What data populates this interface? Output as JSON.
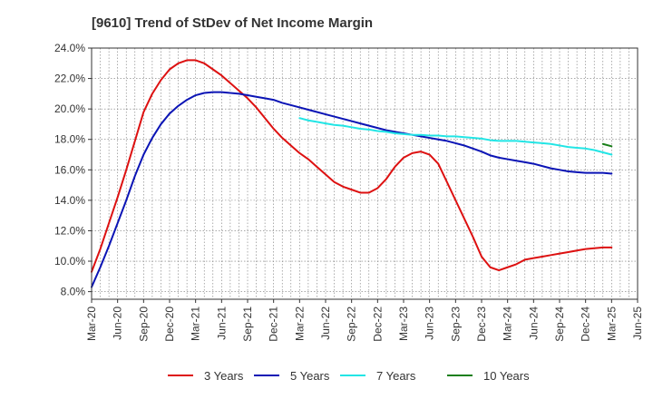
{
  "chart_data": {
    "type": "line",
    "title": "[9610]  Trend of StDev of Net Income Margin",
    "xlabel": "",
    "ylabel": "",
    "ylim": [
      7.5,
      24.0
    ],
    "yticks": [
      8.0,
      10.0,
      12.0,
      14.0,
      16.0,
      18.0,
      20.0,
      22.0,
      24.0
    ],
    "ytick_labels": [
      "8.0%",
      "10.0%",
      "12.0%",
      "14.0%",
      "16.0%",
      "18.0%",
      "20.0%",
      "22.0%",
      "24.0%"
    ],
    "xticks": [
      "Mar-20",
      "Jun-20",
      "Sep-20",
      "Dec-20",
      "Mar-21",
      "Jun-21",
      "Sep-21",
      "Dec-21",
      "Mar-22",
      "Jun-22",
      "Sep-22",
      "Dec-22",
      "Mar-23",
      "Jun-23",
      "Sep-23",
      "Dec-23",
      "Mar-24",
      "Jun-24",
      "Sep-24",
      "Dec-24",
      "Mar-25",
      "Jun-25"
    ],
    "grid": true,
    "legend_position": "bottom",
    "series": [
      {
        "name": "3 Years",
        "color": "#dd1111",
        "points": [
          [
            "Mar-20",
            9.3
          ],
          [
            "Apr-20",
            10.8
          ],
          [
            "May-20",
            12.5
          ],
          [
            "Jun-20",
            14.2
          ],
          [
            "Jul-20",
            16.0
          ],
          [
            "Aug-20",
            17.9
          ],
          [
            "Sep-20",
            19.8
          ],
          [
            "Oct-20",
            21.0
          ],
          [
            "Nov-20",
            21.9
          ],
          [
            "Dec-20",
            22.6
          ],
          [
            "Jan-21",
            23.0
          ],
          [
            "Feb-21",
            23.2
          ],
          [
            "Mar-21",
            23.2
          ],
          [
            "Apr-21",
            23.0
          ],
          [
            "May-21",
            22.6
          ],
          [
            "Jun-21",
            22.2
          ],
          [
            "Jul-21",
            21.7
          ],
          [
            "Aug-21",
            21.2
          ],
          [
            "Sep-21",
            20.7
          ],
          [
            "Oct-21",
            20.1
          ],
          [
            "Nov-21",
            19.4
          ],
          [
            "Dec-21",
            18.7
          ],
          [
            "Jan-22",
            18.1
          ],
          [
            "Feb-22",
            17.6
          ],
          [
            "Mar-22",
            17.1
          ],
          [
            "Apr-22",
            16.7
          ],
          [
            "May-22",
            16.2
          ],
          [
            "Jun-22",
            15.7
          ],
          [
            "Jul-22",
            15.2
          ],
          [
            "Aug-22",
            14.9
          ],
          [
            "Sep-22",
            14.7
          ],
          [
            "Oct-22",
            14.5
          ],
          [
            "Nov-22",
            14.5
          ],
          [
            "Dec-22",
            14.8
          ],
          [
            "Jan-23",
            15.4
          ],
          [
            "Feb-23",
            16.2
          ],
          [
            "Mar-23",
            16.8
          ],
          [
            "Apr-23",
            17.1
          ],
          [
            "May-23",
            17.2
          ],
          [
            "Jun-23",
            17.0
          ],
          [
            "Jul-23",
            16.4
          ],
          [
            "Aug-23",
            15.2
          ],
          [
            "Sep-23",
            14.0
          ],
          [
            "Oct-23",
            12.8
          ],
          [
            "Nov-23",
            11.6
          ],
          [
            "Dec-23",
            10.3
          ],
          [
            "Jan-24",
            9.6
          ],
          [
            "Feb-24",
            9.4
          ],
          [
            "Mar-24",
            9.6
          ],
          [
            "Apr-24",
            9.8
          ],
          [
            "May-24",
            10.1
          ],
          [
            "Jun-24",
            10.2
          ],
          [
            "Jul-24",
            10.3
          ],
          [
            "Aug-24",
            10.4
          ],
          [
            "Sep-24",
            10.5
          ],
          [
            "Oct-24",
            10.6
          ],
          [
            "Nov-24",
            10.7
          ],
          [
            "Dec-24",
            10.8
          ],
          [
            "Jan-25",
            10.85
          ],
          [
            "Feb-25",
            10.9
          ],
          [
            "Mar-25",
            10.9
          ]
        ]
      },
      {
        "name": "5 Years",
        "color": "#0b14b5",
        "points": [
          [
            "Mar-20",
            8.3
          ],
          [
            "Apr-20",
            9.6
          ],
          [
            "May-20",
            11.0
          ],
          [
            "Jun-20",
            12.5
          ],
          [
            "Jul-20",
            14.0
          ],
          [
            "Aug-20",
            15.6
          ],
          [
            "Sep-20",
            17.0
          ],
          [
            "Oct-20",
            18.1
          ],
          [
            "Nov-20",
            19.0
          ],
          [
            "Dec-20",
            19.7
          ],
          [
            "Jan-21",
            20.2
          ],
          [
            "Feb-21",
            20.6
          ],
          [
            "Mar-21",
            20.9
          ],
          [
            "Apr-21",
            21.05
          ],
          [
            "May-21",
            21.1
          ],
          [
            "Jun-21",
            21.1
          ],
          [
            "Jul-21",
            21.05
          ],
          [
            "Aug-21",
            21.0
          ],
          [
            "Sep-21",
            20.9
          ],
          [
            "Oct-21",
            20.8
          ],
          [
            "Nov-21",
            20.7
          ],
          [
            "Dec-21",
            20.6
          ],
          [
            "Jan-22",
            20.4
          ],
          [
            "Feb-22",
            20.25
          ],
          [
            "Mar-22",
            20.1
          ],
          [
            "Apr-22",
            19.95
          ],
          [
            "May-22",
            19.8
          ],
          [
            "Jun-22",
            19.65
          ],
          [
            "Jul-22",
            19.5
          ],
          [
            "Aug-22",
            19.35
          ],
          [
            "Sep-22",
            19.2
          ],
          [
            "Oct-22",
            19.05
          ],
          [
            "Nov-22",
            18.9
          ],
          [
            "Dec-22",
            18.75
          ],
          [
            "Jan-23",
            18.6
          ],
          [
            "Feb-23",
            18.5
          ],
          [
            "Mar-23",
            18.4
          ],
          [
            "Apr-23",
            18.3
          ],
          [
            "May-23",
            18.2
          ],
          [
            "Jun-23",
            18.1
          ],
          [
            "Jul-23",
            18.0
          ],
          [
            "Aug-23",
            17.9
          ],
          [
            "Sep-23",
            17.75
          ],
          [
            "Oct-23",
            17.6
          ],
          [
            "Nov-23",
            17.4
          ],
          [
            "Dec-23",
            17.2
          ],
          [
            "Jan-24",
            16.95
          ],
          [
            "Feb-24",
            16.8
          ],
          [
            "Mar-24",
            16.7
          ],
          [
            "Apr-24",
            16.6
          ],
          [
            "May-24",
            16.5
          ],
          [
            "Jun-24",
            16.4
          ],
          [
            "Jul-24",
            16.25
          ],
          [
            "Aug-24",
            16.1
          ],
          [
            "Sep-24",
            16.0
          ],
          [
            "Oct-24",
            15.9
          ],
          [
            "Nov-24",
            15.85
          ],
          [
            "Dec-24",
            15.8
          ],
          [
            "Jan-25",
            15.8
          ],
          [
            "Feb-25",
            15.8
          ],
          [
            "Mar-25",
            15.75
          ]
        ]
      },
      {
        "name": "7 Years",
        "color": "#22e5e5",
        "points": [
          [
            "Mar-22",
            19.4
          ],
          [
            "Apr-22",
            19.25
          ],
          [
            "May-22",
            19.15
          ],
          [
            "Jun-22",
            19.05
          ],
          [
            "Jul-22",
            18.95
          ],
          [
            "Aug-22",
            18.9
          ],
          [
            "Sep-22",
            18.8
          ],
          [
            "Oct-22",
            18.7
          ],
          [
            "Nov-22",
            18.65
          ],
          [
            "Dec-22",
            18.55
          ],
          [
            "Jan-23",
            18.5
          ],
          [
            "Feb-23",
            18.4
          ],
          [
            "Mar-23",
            18.35
          ],
          [
            "Apr-23",
            18.3
          ],
          [
            "May-23",
            18.3
          ],
          [
            "Jun-23",
            18.25
          ],
          [
            "Jul-23",
            18.25
          ],
          [
            "Aug-23",
            18.2
          ],
          [
            "Sep-23",
            18.2
          ],
          [
            "Oct-23",
            18.15
          ],
          [
            "Nov-23",
            18.1
          ],
          [
            "Dec-23",
            18.05
          ],
          [
            "Jan-24",
            17.95
          ],
          [
            "Feb-24",
            17.9
          ],
          [
            "Mar-24",
            17.9
          ],
          [
            "Apr-24",
            17.9
          ],
          [
            "May-24",
            17.85
          ],
          [
            "Jun-24",
            17.8
          ],
          [
            "Jul-24",
            17.75
          ],
          [
            "Aug-24",
            17.7
          ],
          [
            "Sep-24",
            17.6
          ],
          [
            "Oct-24",
            17.5
          ],
          [
            "Nov-24",
            17.45
          ],
          [
            "Dec-24",
            17.4
          ],
          [
            "Jan-25",
            17.3
          ],
          [
            "Feb-25",
            17.15
          ],
          [
            "Mar-25",
            17.0
          ]
        ]
      },
      {
        "name": "10 Years",
        "color": "#1a7f1a",
        "points": [
          [
            "Feb-25",
            17.7
          ],
          [
            "Mar-25",
            17.55
          ]
        ]
      }
    ]
  }
}
